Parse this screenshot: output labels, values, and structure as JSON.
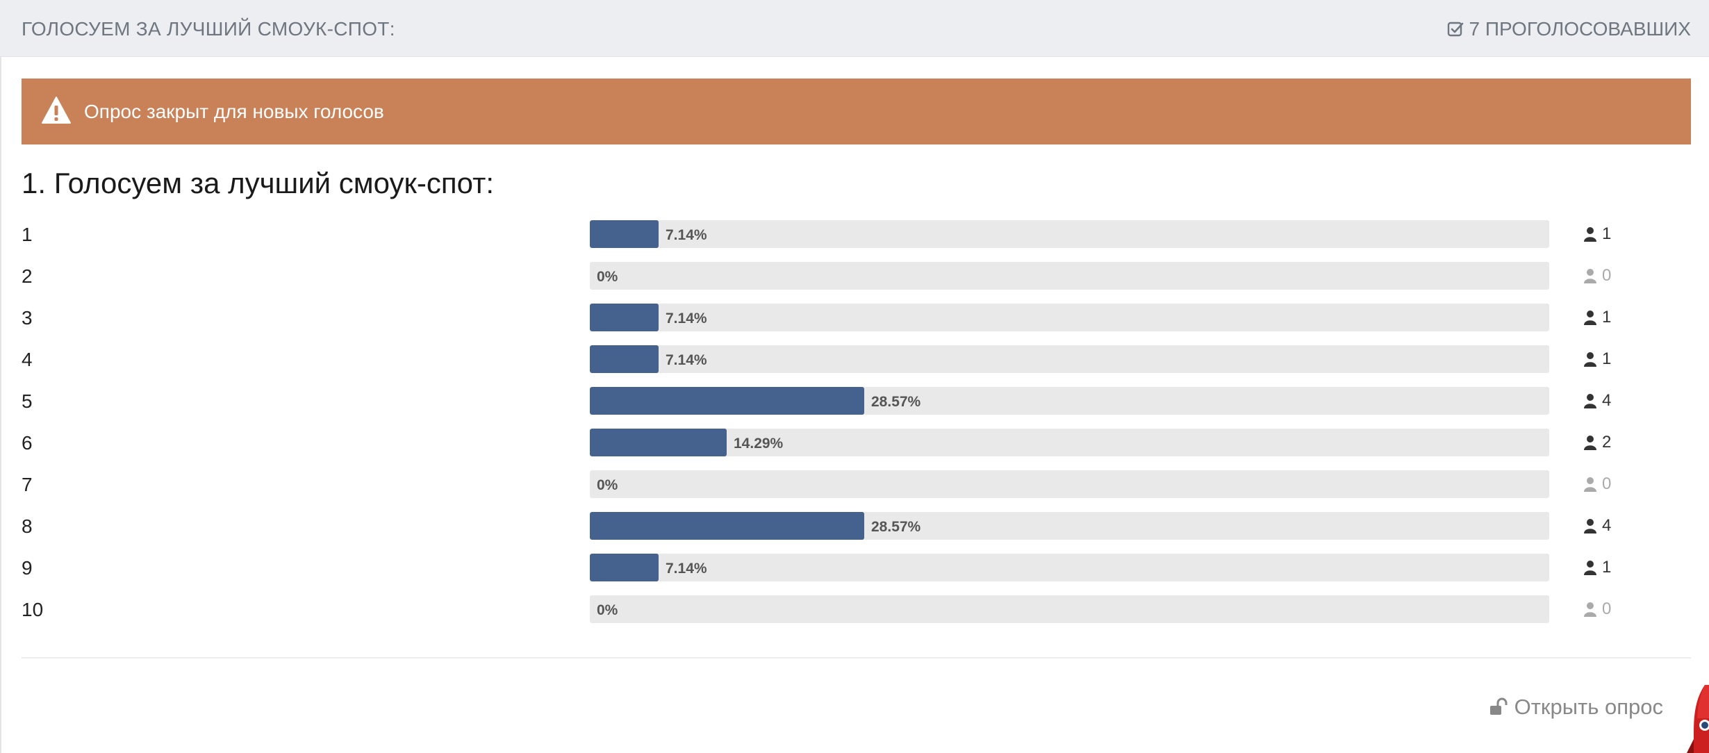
{
  "header": {
    "title": "ГОЛОСУЕМ ЗА ЛУЧШИЙ СМОУК-СПОТ:",
    "voters_label": "7 ПРОГОЛОСОВАВШИХ",
    "voters_icon": "check-square-icon"
  },
  "alert": {
    "text": "Опрос закрыт для новых голосов",
    "icon": "warning-icon",
    "color": "#c98157"
  },
  "question": {
    "title": "1. Голосуем за лучший смоук-спот:"
  },
  "colors": {
    "bar_fill": "#45628e",
    "bar_track": "#e9e9e9"
  },
  "options": [
    {
      "label": "1",
      "percent_label": "7.14%",
      "percent": 7.14,
      "votes": "1"
    },
    {
      "label": "2",
      "percent_label": "0%",
      "percent": 0,
      "votes": "0"
    },
    {
      "label": "3",
      "percent_label": "7.14%",
      "percent": 7.14,
      "votes": "1"
    },
    {
      "label": "4",
      "percent_label": "7.14%",
      "percent": 7.14,
      "votes": "1"
    },
    {
      "label": "5",
      "percent_label": "28.57%",
      "percent": 28.57,
      "votes": "4"
    },
    {
      "label": "6",
      "percent_label": "14.29%",
      "percent": 14.29,
      "votes": "2"
    },
    {
      "label": "7",
      "percent_label": "0%",
      "percent": 0,
      "votes": "0"
    },
    {
      "label": "8",
      "percent_label": "28.57%",
      "percent": 28.57,
      "votes": "4"
    },
    {
      "label": "9",
      "percent_label": "7.14%",
      "percent": 7.14,
      "votes": "1"
    },
    {
      "label": "10",
      "percent_label": "0%",
      "percent": 0,
      "votes": "0"
    }
  ],
  "footer": {
    "open_poll_label": "Открыть опрос",
    "open_poll_icon": "unlock-icon"
  }
}
